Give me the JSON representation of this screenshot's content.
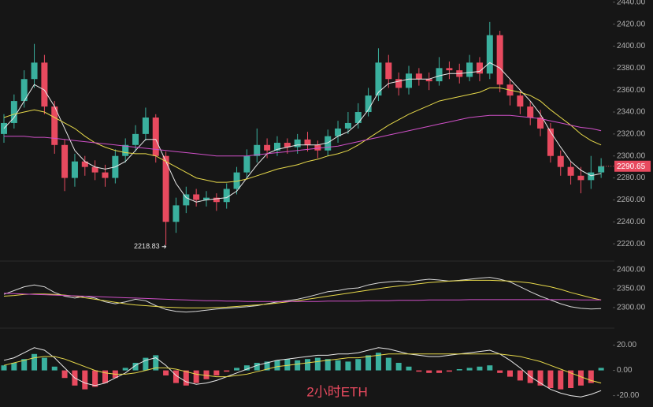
{
  "watermark": "2小时ETH",
  "chart_data": [
    {
      "type": "candlestick",
      "up_color": "#3ab09e",
      "down_color": "#e84a5f",
      "ylim": [
        2205,
        2442
      ],
      "yticks": [
        {
          "value": 2220,
          "label": "2220.00"
        },
        {
          "value": 2240,
          "label": "2240.00"
        },
        {
          "value": 2260,
          "label": "2260.00"
        },
        {
          "value": 2280,
          "label": "2280.00"
        },
        {
          "value": 2300,
          "label": "2300.00"
        },
        {
          "value": 2320,
          "label": "2320.00"
        },
        {
          "value": 2340,
          "label": "2340.00"
        },
        {
          "value": 2360,
          "label": "2360.00"
        },
        {
          "value": 2380,
          "label": "2380.00"
        },
        {
          "value": 2400,
          "label": "2400.00"
        },
        {
          "value": 2420,
          "label": "2420.00"
        },
        {
          "value": 2440,
          "label": "2440.00"
        }
      ],
      "open": [
        2320,
        2330,
        2350,
        2370,
        2385,
        2345,
        2310,
        2280,
        2295,
        2290,
        2285,
        2280,
        2300,
        2310,
        2320,
        2335,
        2300,
        2240,
        2255,
        2265,
        2260,
        2262,
        2258,
        2270,
        2285,
        2300,
        2310,
        2305,
        2312,
        2308,
        2315,
        2310,
        2305,
        2318,
        2325,
        2330,
        2340,
        2355,
        2385,
        2370,
        2362,
        2375,
        2370,
        2368,
        2380,
        2378,
        2372,
        2385,
        2375,
        2410,
        2365,
        2355,
        2345,
        2335,
        2325,
        2300,
        2290,
        2282,
        2278,
        2285
      ],
      "high": [
        2338,
        2356,
        2378,
        2402,
        2392,
        2350,
        2315,
        2302,
        2300,
        2296,
        2292,
        2306,
        2316,
        2328,
        2344,
        2338,
        2304,
        2262,
        2272,
        2270,
        2268,
        2266,
        2275,
        2290,
        2306,
        2325,
        2316,
        2318,
        2316,
        2320,
        2322,
        2314,
        2324,
        2332,
        2340,
        2348,
        2362,
        2398,
        2392,
        2376,
        2382,
        2380,
        2376,
        2390,
        2386,
        2384,
        2392,
        2390,
        2422,
        2414,
        2370,
        2360,
        2350,
        2342,
        2330,
        2305,
        2295,
        2290,
        2300,
        2298
      ],
      "low": [
        2312,
        2325,
        2344,
        2362,
        2338,
        2302,
        2268,
        2272,
        2282,
        2278,
        2272,
        2275,
        2294,
        2304,
        2314,
        2294,
        2218.83,
        2230,
        2248,
        2254,
        2254,
        2250,
        2252,
        2265,
        2280,
        2294,
        2298,
        2300,
        2302,
        2302,
        2304,
        2298,
        2300,
        2312,
        2320,
        2325,
        2336,
        2350,
        2362,
        2355,
        2356,
        2364,
        2360,
        2364,
        2370,
        2366,
        2368,
        2368,
        2370,
        2358,
        2346,
        2338,
        2328,
        2318,
        2294,
        2282,
        2274,
        2266,
        2270,
        2280
      ],
      "close": [
        2330,
        2350,
        2370,
        2385,
        2345,
        2310,
        2280,
        2295,
        2290,
        2285,
        2280,
        2300,
        2310,
        2320,
        2335,
        2300,
        2240,
        2255,
        2265,
        2260,
        2262,
        2258,
        2270,
        2285,
        2300,
        2310,
        2305,
        2312,
        2308,
        2315,
        2310,
        2305,
        2318,
        2325,
        2330,
        2340,
        2355,
        2385,
        2370,
        2362,
        2375,
        2370,
        2368,
        2380,
        2378,
        2372,
        2385,
        2375,
        2410,
        2365,
        2355,
        2345,
        2335,
        2325,
        2300,
        2290,
        2282,
        2278,
        2285,
        2290.65
      ],
      "series": [
        {
          "color": "#e8e8e8",
          "values": [
            2325,
            2335,
            2350,
            2365,
            2360,
            2345,
            2325,
            2305,
            2295,
            2290,
            2288,
            2290,
            2295,
            2305,
            2315,
            2315,
            2295,
            2275,
            2262,
            2258,
            2260,
            2261,
            2262,
            2268,
            2280,
            2292,
            2302,
            2306,
            2308,
            2310,
            2310,
            2310,
            2312,
            2318,
            2322,
            2330,
            2342,
            2358,
            2366,
            2368,
            2370,
            2370,
            2370,
            2373,
            2375,
            2375,
            2376,
            2377,
            2385,
            2380,
            2370,
            2360,
            2350,
            2338,
            2322,
            2308,
            2295,
            2287,
            2282,
            2284
          ]
        },
        {
          "color": "#e6d84a",
          "values": [
            2335,
            2338,
            2340,
            2342,
            2340,
            2335,
            2330,
            2325,
            2318,
            2312,
            2308,
            2305,
            2303,
            2302,
            2302,
            2300,
            2295,
            2290,
            2285,
            2280,
            2278,
            2276,
            2276,
            2277,
            2279,
            2282,
            2285,
            2288,
            2290,
            2292,
            2295,
            2297,
            2300,
            2302,
            2305,
            2310,
            2316,
            2322,
            2328,
            2333,
            2338,
            2342,
            2346,
            2350,
            2352,
            2354,
            2356,
            2358,
            2362,
            2362,
            2360,
            2358,
            2355,
            2350,
            2342,
            2335,
            2328,
            2320,
            2314,
            2310
          ]
        },
        {
          "color": "#d050c8",
          "values": [
            2318,
            2318,
            2318,
            2317,
            2317,
            2316,
            2315,
            2314,
            2313,
            2312,
            2311,
            2310,
            2309,
            2308,
            2307,
            2306,
            2305,
            2304,
            2303,
            2302,
            2301,
            2300,
            2300,
            2300,
            2300,
            2301,
            2302,
            2303,
            2304,
            2305,
            2306,
            2307,
            2308,
            2309,
            2311,
            2313,
            2315,
            2317,
            2319,
            2321,
            2323,
            2325,
            2327,
            2329,
            2331,
            2333,
            2335,
            2336,
            2337,
            2337,
            2337,
            2336,
            2335,
            2334,
            2332,
            2330,
            2328,
            2326,
            2325,
            2323
          ]
        }
      ]
    },
    {
      "type": "line",
      "ylim": [
        2258,
        2421
      ],
      "yticks": [
        {
          "value": 2300,
          "label": "2300.00"
        },
        {
          "value": 2350,
          "label": "2350.00"
        },
        {
          "value": 2400,
          "label": "2400.00"
        }
      ],
      "series": [
        {
          "color": "#d8d8d8",
          "values": [
            2335,
            2345,
            2355,
            2360,
            2355,
            2340,
            2330,
            2325,
            2330,
            2325,
            2315,
            2310,
            2315,
            2322,
            2318,
            2305,
            2295,
            2290,
            2288,
            2290,
            2293,
            2296,
            2298,
            2300,
            2302,
            2305,
            2310,
            2315,
            2318,
            2322,
            2328,
            2335,
            2342,
            2345,
            2350,
            2352,
            2360,
            2365,
            2368,
            2370,
            2368,
            2372,
            2375,
            2373,
            2370,
            2372,
            2375,
            2378,
            2380,
            2375,
            2368,
            2355,
            2342,
            2330,
            2320,
            2310,
            2302,
            2298,
            2296,
            2297
          ]
        },
        {
          "color": "#e6d84a",
          "values": [
            2330,
            2332,
            2335,
            2336,
            2336,
            2335,
            2333,
            2330,
            2326,
            2322,
            2318,
            2314,
            2310,
            2307,
            2305,
            2303,
            2301,
            2300,
            2299,
            2299,
            2299,
            2300,
            2301,
            2303,
            2305,
            2307,
            2309,
            2312,
            2315,
            2318,
            2322,
            2326,
            2330,
            2334,
            2338,
            2342,
            2346,
            2350,
            2354,
            2357,
            2360,
            2363,
            2366,
            2368,
            2370,
            2371,
            2372,
            2372,
            2372,
            2371,
            2370,
            2368,
            2365,
            2360,
            2355,
            2348,
            2340,
            2333,
            2326,
            2320
          ]
        },
        {
          "color": "#d050c8",
          "values": [
            2338,
            2337,
            2336,
            2335,
            2334,
            2333,
            2332,
            2331,
            2330,
            2329,
            2328,
            2327,
            2326,
            2325,
            2324,
            2323,
            2322,
            2321,
            2320,
            2319,
            2318,
            2318,
            2317,
            2317,
            2316,
            2316,
            2316,
            2316,
            2316,
            2316,
            2316,
            2316,
            2317,
            2317,
            2317,
            2317,
            2318,
            2318,
            2318,
            2319,
            2319,
            2319,
            2320,
            2320,
            2320,
            2320,
            2321,
            2321,
            2321,
            2321,
            2321,
            2321,
            2321,
            2321,
            2321,
            2321,
            2321,
            2320,
            2320,
            2320
          ]
        }
      ]
    },
    {
      "type": "macd",
      "ylim": [
        -29,
        31
      ],
      "up_color": "#3ab09e",
      "down_color": "#e84a5f",
      "yticks": [
        {
          "value": -20,
          "label": "-20.00"
        },
        {
          "value": 0,
          "label": "0.00"
        },
        {
          "value": 20,
          "label": "20.00"
        }
      ],
      "values": [
        4,
        6,
        9,
        13,
        10,
        3,
        -6,
        -12,
        -15,
        -13,
        -10,
        -6,
        2,
        6,
        10,
        12,
        -4,
        -10,
        -12,
        -10,
        -7,
        -4,
        -1,
        2,
        4,
        6,
        7,
        8,
        9,
        8,
        9,
        10,
        9,
        8,
        7,
        9,
        12,
        14,
        10,
        6,
        3,
        -1,
        -2,
        -2,
        -1,
        1,
        2,
        3,
        4,
        -2,
        -5,
        -8,
        -10,
        -12,
        -14,
        -15,
        -14,
        -12,
        -10,
        2
      ],
      "series": [
        {
          "color": "#e8e8e8",
          "values": [
            8,
            10,
            14,
            18,
            16,
            10,
            2,
            -6,
            -10,
            -12,
            -10,
            -6,
            -2,
            4,
            8,
            10,
            4,
            -4,
            -9,
            -11,
            -10,
            -8,
            -5,
            -2,
            1,
            4,
            6,
            8,
            9,
            10,
            11,
            12,
            12,
            13,
            13,
            14,
            16,
            18,
            17,
            15,
            13,
            12,
            11,
            11,
            12,
            13,
            14,
            15,
            16,
            13,
            8,
            2,
            -5,
            -10,
            -15,
            -18,
            -20,
            -21,
            -19,
            -16
          ]
        },
        {
          "color": "#e6d84a",
          "values": [
            4,
            6,
            8,
            10,
            11,
            11,
            9,
            6,
            3,
            0,
            -2,
            -3,
            -3,
            -2,
            0,
            2,
            2,
            1,
            -1,
            -3,
            -4,
            -5,
            -5,
            -4,
            -3,
            -1,
            1,
            3,
            4,
            5,
            6,
            7,
            8,
            9,
            10,
            10,
            11,
            12,
            13,
            13,
            13,
            13,
            13,
            13,
            13,
            13,
            13,
            13,
            13,
            13,
            12,
            11,
            9,
            7,
            4,
            1,
            -2,
            -5,
            -8,
            -10
          ]
        }
      ]
    }
  ]
}
